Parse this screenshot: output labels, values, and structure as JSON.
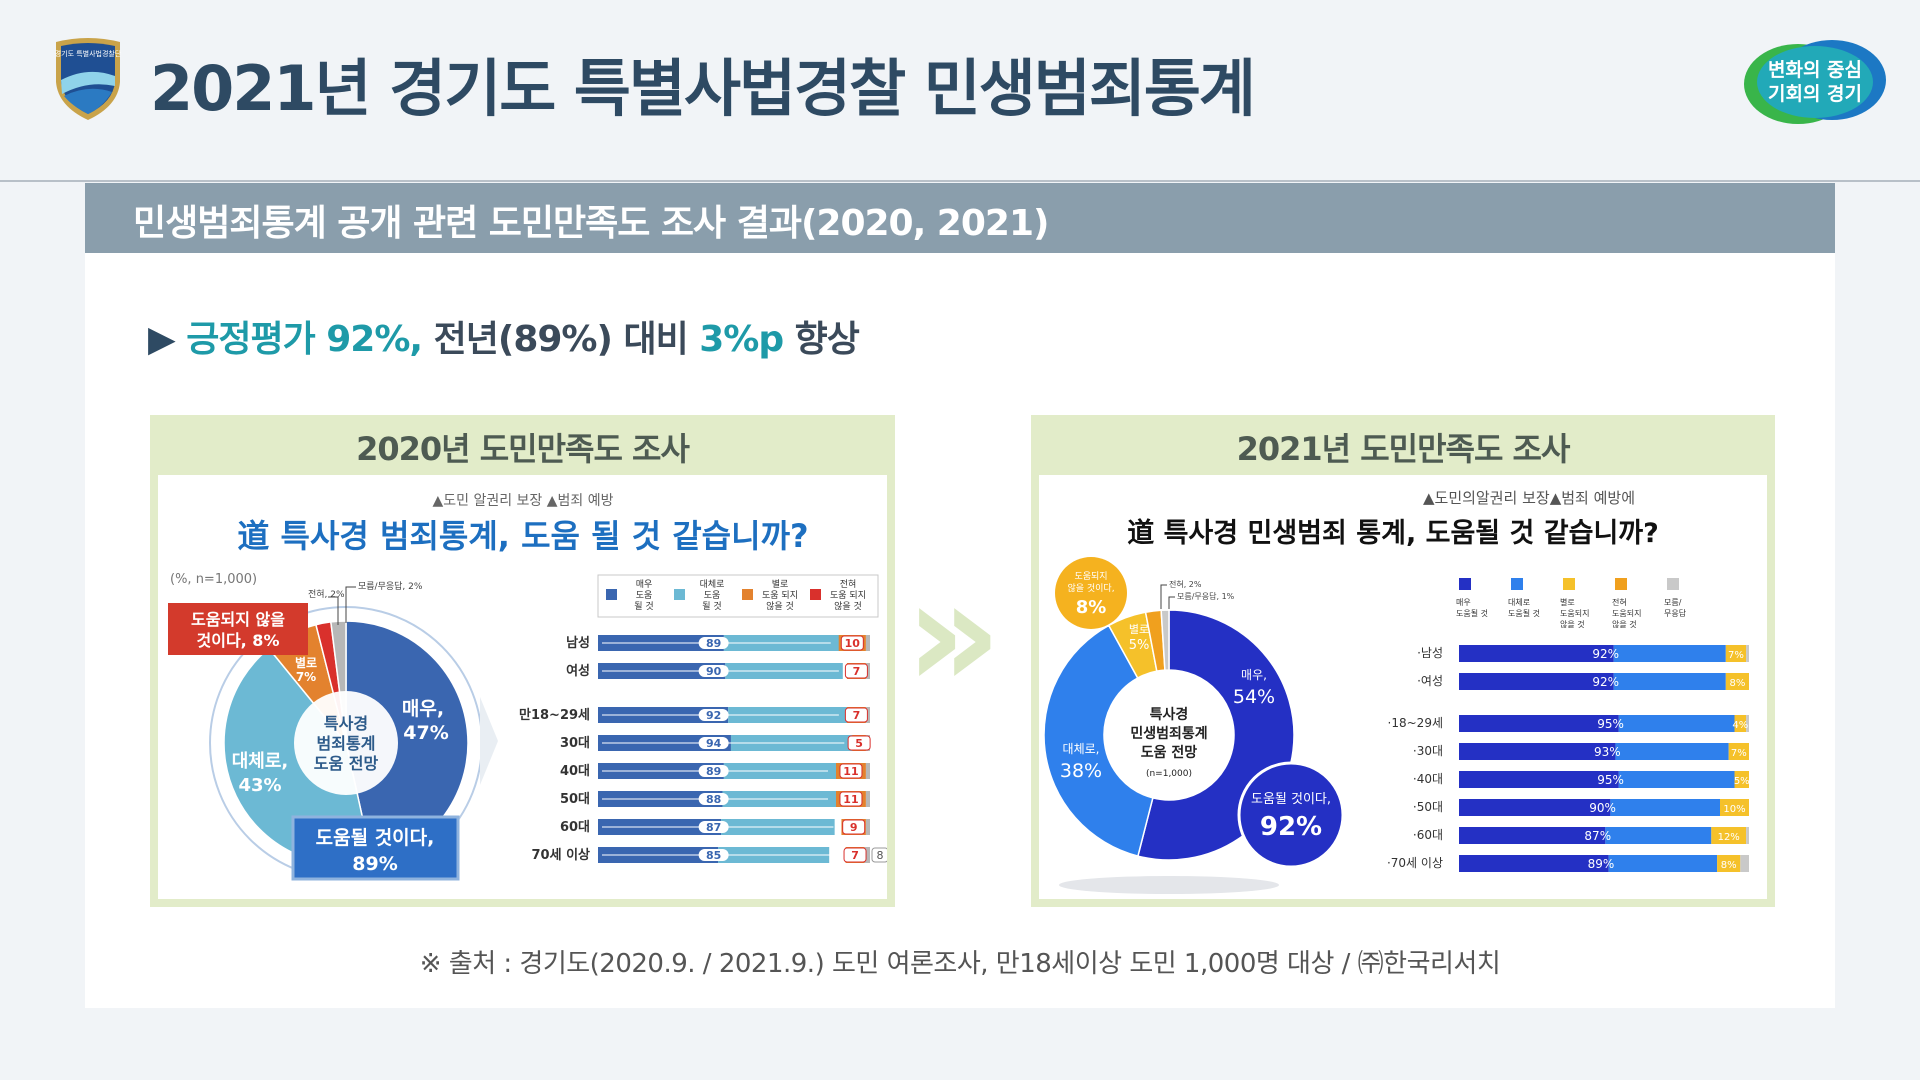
{
  "header": {
    "title": "2021년 경기도 특별사법경찰 민생범죄통계",
    "logo_text": "경기도 특별사법경찰단",
    "badge_line1": "변화의 중심",
    "badge_line2": "기회의 경기"
  },
  "section_bar": "민생범죄통계 공개 관련 도민만족도 조사 결과(2020, 2021)",
  "headline": {
    "arrow": "▶",
    "part1": "긍정평가 92%,",
    "part2": " 전년(89%) 대비 ",
    "part3": "3%p",
    "part4": " 향상"
  },
  "arrow_glyph": "»",
  "source": "※ 출처 : 경기도(2020.9.  / 2021.9.) 도민 여론조사, 만18세이상 도민 1,000명 대상 / ㈜한국리서치",
  "colors": {
    "teal": "#1e9aa8",
    "navy": "#2e4a63",
    "green_frame": "#e2ecc9"
  },
  "chart_data": [
    {
      "type": "pie",
      "header": "2020년 도민만족도 조사",
      "subtitle": "▲도민 알권리 보장 ▲범죄 예방",
      "title": "道 특사경 범죄통계, 도움 될 것 같습니까?",
      "note": "(%, n=1,000)",
      "center_label": [
        "특사경",
        "범죄통계",
        "도움 전망"
      ],
      "slices": [
        {
          "label_l1": "매우,",
          "label_l2": "47%",
          "value": 47,
          "color": "#3a66b0"
        },
        {
          "label_l1": "대체로,",
          "label_l2": "43%",
          "value": 43,
          "color": "#6cb9d4"
        },
        {
          "label_l1": "별로",
          "label_l2": "7%",
          "value": 7,
          "color": "#e3822e"
        },
        {
          "label_l1": "전혀, 2%",
          "label_l2": "",
          "value": 2,
          "color": "#d9302c"
        },
        {
          "label_l1": "모름/무응답, 2%",
          "label_l2": "",
          "value": 2,
          "color": "#b7b7b7"
        }
      ],
      "callout_positive": {
        "line1": "도움될 것이다,",
        "line2": "89%"
      },
      "callout_negative": {
        "line1": "도움되지 않을",
        "line2": "것이다, 8%"
      },
      "legend": [
        {
          "l1": "매우",
          "l2": "도움",
          "l3": "될 것",
          "color": "#3a66b0"
        },
        {
          "l1": "대체로",
          "l2": "도움",
          "l3": "될 것",
          "color": "#6cb9d4"
        },
        {
          "l1": "별로",
          "l2": "도움 되지",
          "l3": "않을 것",
          "color": "#e3822e"
        },
        {
          "l1": "전혀",
          "l2": "도움 되지",
          "l3": "않을 것",
          "color": "#d9302c"
        }
      ],
      "rows": [
        {
          "label": "남성",
          "positive": 89,
          "negative": 10
        },
        {
          "label": "여성",
          "positive": 90,
          "negative": 7
        },
        {
          "label": "만18~29세",
          "positive": 92,
          "negative": 7
        },
        {
          "label": "30대",
          "positive": 94,
          "negative": 5
        },
        {
          "label": "40대",
          "positive": 89,
          "negative": 11
        },
        {
          "label": "50대",
          "positive": 88,
          "negative": 11
        },
        {
          "label": "60대",
          "positive": 87,
          "negative": 9
        },
        {
          "label": "70세 이상",
          "positive": 85,
          "negative": 7,
          "dk": 8
        }
      ]
    },
    {
      "type": "pie",
      "header": "2021년 도민만족도 조사",
      "subtitle": "▲도민의알권리 보장▲범죄 예방에",
      "title_plain": "道 특사경 민생범죄 통계, ",
      "title_bold": "도움될 것",
      "title_end": " 같습니까?",
      "center_label": [
        "특사경",
        "민생범죄통계",
        "도움 전망",
        "(n=1,000)"
      ],
      "slices": [
        {
          "label_l1": "매우,",
          "label_l2": "54%",
          "value": 54,
          "color": "#2430c4"
        },
        {
          "label_l1": "대체로,",
          "label_l2": "38%",
          "value": 38,
          "color": "#2f80ec"
        },
        {
          "label_l1": "별로",
          "label_l2": "5%",
          "value": 5,
          "color": "#f5c12a"
        },
        {
          "label_l1": "전혀, 2%",
          "label_l2": "",
          "value": 2,
          "color": "#f0a01e"
        },
        {
          "label_l1": "모름/무응답, 1%",
          "label_l2": "",
          "value": 1,
          "color": "#c9c9c9"
        }
      ],
      "callout_positive": {
        "line1": "도움될 것이다,",
        "line2": "92%"
      },
      "callout_negative": {
        "line1": "도움되지",
        "line1b": "않을 것이다,",
        "line2": "8%"
      },
      "legend": [
        {
          "l1": "매우",
          "l2": "도움될 것",
          "l3": "",
          "color": "#2430c4"
        },
        {
          "l1": "대체로",
          "l2": "도움될 것",
          "l3": "",
          "color": "#2f80ec"
        },
        {
          "l1": "별로",
          "l2": "도움되지",
          "l3": "않을 것",
          "color": "#f5c12a"
        },
        {
          "l1": "전혀",
          "l2": "도움되지",
          "l3": "않을 것",
          "color": "#f0a01e"
        },
        {
          "l1": "모름/",
          "l2": "무응답",
          "l3": "",
          "color": "#c9c9c9"
        }
      ],
      "rows": [
        {
          "label": "·남성",
          "positive": 92,
          "negative": 7
        },
        {
          "label": "·여성",
          "positive": 92,
          "negative": 8
        },
        {
          "label": "·18~29세",
          "positive": 95,
          "negative": 4
        },
        {
          "label": "·30대",
          "positive": 93,
          "negative": 7
        },
        {
          "label": "·40대",
          "positive": 95,
          "negative": 5
        },
        {
          "label": "·50대",
          "positive": 90,
          "negative": 10
        },
        {
          "label": "·60대",
          "positive": 87,
          "negative": 12
        },
        {
          "label": "·70세 이상",
          "positive": 89,
          "negative": 8
        }
      ]
    }
  ]
}
